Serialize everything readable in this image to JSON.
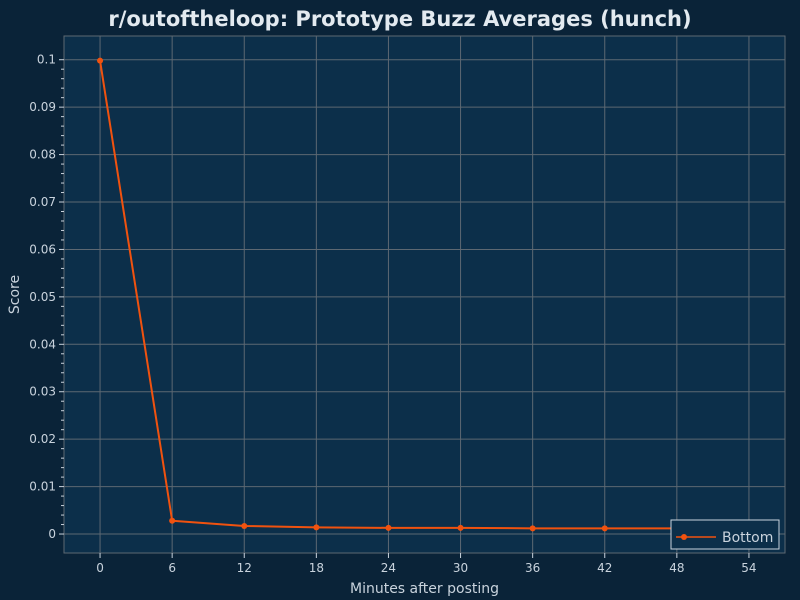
{
  "chart_data": {
    "type": "line",
    "title": "r/outoftheloop: Prototype Buzz Averages (hunch)",
    "xlabel": "Minutes after posting",
    "ylabel": "Score",
    "xlim": [
      -3,
      57
    ],
    "ylim": [
      -0.004,
      0.105
    ],
    "x_ticks": [
      0,
      6,
      12,
      18,
      24,
      30,
      36,
      42,
      48,
      54
    ],
    "y_ticks": [
      0,
      0.01,
      0.02,
      0.03,
      0.04,
      0.05,
      0.06,
      0.07,
      0.08,
      0.09,
      0.1
    ],
    "x_tick_labels": [
      "0",
      "6",
      "12",
      "18",
      "24",
      "30",
      "36",
      "42",
      "48",
      "54"
    ],
    "y_tick_labels": [
      "0",
      "0.01",
      "0.02",
      "0.03",
      "0.04",
      "0.05",
      "0.06",
      "0.07",
      "0.08",
      "0.09",
      "0.1"
    ],
    "grid": true,
    "legend_position": "bottom-right",
    "series": [
      {
        "name": "Bottom",
        "color": "#f0520f",
        "x": [
          0,
          6,
          12,
          18,
          24,
          30,
          36,
          42,
          48
        ],
        "y": [
          0.0998,
          0.0028,
          0.0017,
          0.0014,
          0.0013,
          0.0013,
          0.0012,
          0.0012,
          0.0012
        ]
      }
    ]
  },
  "colors": {
    "background": "#0a2338",
    "plot_background": "#0c2f4a",
    "grid": "#5d6872",
    "axis_text": "#c9d3dd",
    "title_text": "#e3eaf0"
  }
}
